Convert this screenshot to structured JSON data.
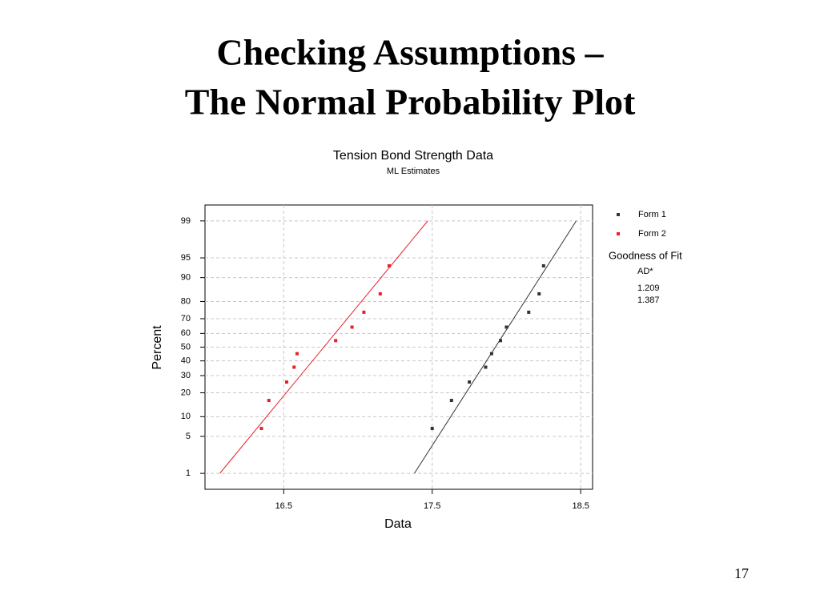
{
  "slide": {
    "title": [
      "Checking Assumptions –",
      "The Normal Probability Plot"
    ],
    "page_number": "17"
  },
  "chart_data": {
    "type": "scatter",
    "title": "Tension Bond Strength Data",
    "subtitle": "ML Estimates",
    "x_label": "Data",
    "y_label": "Percent",
    "yscale": "normal-probability",
    "grid": true,
    "xlim": [
      15.97,
      18.58
    ],
    "xticks": [
      16.5,
      17.5,
      18.5
    ],
    "ylim": [
      0.44,
      99.56
    ],
    "yticks": [
      1,
      5,
      10,
      20,
      30,
      40,
      50,
      60,
      70,
      80,
      90,
      95,
      99
    ],
    "legend_position": "right",
    "series": [
      {
        "name": "Form 1",
        "color": "#333333",
        "x": [
          17.5,
          17.63,
          17.75,
          17.86,
          17.9,
          17.96,
          18.0,
          18.15,
          18.22,
          18.25
        ],
        "y": [
          6.7,
          16.3,
          26.0,
          35.6,
          45.2,
          54.8,
          64.4,
          74.0,
          83.7,
          93.3
        ],
        "fit": {
          "x": [
            17.38,
            18.47
          ],
          "y": [
            1,
            99
          ]
        }
      },
      {
        "name": "Form 2",
        "color": "#e8202a",
        "x": [
          16.35,
          16.4,
          16.52,
          16.57,
          16.59,
          16.85,
          16.96,
          17.04,
          17.15,
          17.21
        ],
        "y": [
          6.7,
          16.3,
          26.0,
          35.6,
          45.2,
          54.8,
          64.4,
          74.0,
          83.7,
          93.3
        ],
        "fit": {
          "x": [
            16.07,
            17.47
          ],
          "y": [
            1,
            99
          ]
        }
      }
    ],
    "goodness_of_fit": {
      "title": "Goodness of Fit",
      "header": "AD*",
      "values": [
        1.209,
        1.387
      ]
    }
  }
}
